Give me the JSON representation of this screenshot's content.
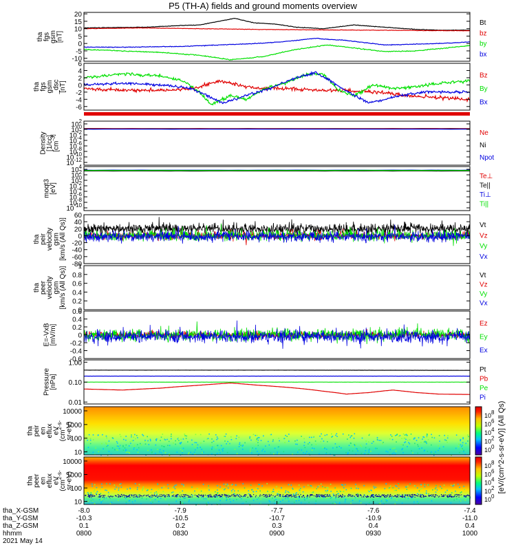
{
  "title": "P5 (TH-A) fields and ground moments overview",
  "colors": {
    "black": "#000000",
    "red": "#e00000",
    "green": "#00e000",
    "blue": "#0000e0"
  },
  "chart_data": [
    {
      "type": "line",
      "ylabel": [
        "tha",
        "fgs",
        "gsm",
        "[nT]"
      ],
      "ylim": [
        -12,
        21
      ],
      "yticks": [
        20,
        15,
        10,
        5,
        0,
        -5,
        -10
      ],
      "series": [
        {
          "name": "Bt",
          "color": "black",
          "points": [
            [
              0,
              10.5
            ],
            [
              0.08,
              10.8
            ],
            [
              0.16,
              11
            ],
            [
              0.24,
              12
            ],
            [
              0.3,
              12.5
            ],
            [
              0.35,
              15
            ],
            [
              0.39,
              17
            ],
            [
              0.44,
              14
            ],
            [
              0.5,
              13
            ],
            [
              0.55,
              11
            ],
            [
              0.62,
              10
            ],
            [
              0.7,
              12.5
            ],
            [
              0.78,
              11
            ],
            [
              0.86,
              9.5
            ],
            [
              0.92,
              9
            ],
            [
              1,
              9
            ]
          ],
          "noise": 0.15
        },
        {
          "name": "bz",
          "color": "red",
          "points": [
            [
              0,
              10
            ],
            [
              0.15,
              10.5
            ],
            [
              0.3,
              10
            ],
            [
              0.45,
              9.5
            ],
            [
              0.6,
              9.2
            ],
            [
              0.75,
              9
            ],
            [
              0.9,
              8.7
            ],
            [
              1,
              8.6
            ]
          ],
          "noise": 0.12
        },
        {
          "name": "by",
          "color": "green",
          "points": [
            [
              0,
              -4
            ],
            [
              0.1,
              -5
            ],
            [
              0.2,
              -6
            ],
            [
              0.3,
              -8
            ],
            [
              0.38,
              -11
            ],
            [
              0.46,
              -9
            ],
            [
              0.55,
              -4
            ],
            [
              0.63,
              -1
            ],
            [
              0.7,
              -3
            ],
            [
              0.78,
              -5.5
            ],
            [
              0.86,
              -5
            ],
            [
              0.94,
              -3
            ],
            [
              1,
              -1.5
            ]
          ],
          "noise": 0.25
        },
        {
          "name": "bx",
          "color": "blue",
          "points": [
            [
              0,
              -2.5
            ],
            [
              0.1,
              -2.5
            ],
            [
              0.25,
              -2
            ],
            [
              0.35,
              -1
            ],
            [
              0.45,
              0
            ],
            [
              0.53,
              1.5
            ],
            [
              0.6,
              3.5
            ],
            [
              0.68,
              2
            ],
            [
              0.78,
              -1
            ],
            [
              0.85,
              -0.5
            ],
            [
              0.92,
              0
            ],
            [
              1,
              1
            ]
          ],
          "noise": 0.2
        }
      ]
    },
    {
      "type": "line",
      "ylabel": [
        "tha",
        "fgs",
        "gsm",
        "_dsc",
        "[nT]"
      ],
      "ylim": [
        -7,
        6
      ],
      "yticks": [
        6,
        4,
        2,
        0,
        -2,
        -4,
        -6
      ],
      "series": [
        {
          "name": "Bz",
          "color": "red",
          "points": [
            [
              0,
              -1
            ],
            [
              0.1,
              -1.5
            ],
            [
              0.2,
              -1.5
            ],
            [
              0.28,
              -1
            ],
            [
              0.35,
              1
            ],
            [
              0.4,
              0
            ],
            [
              0.45,
              -1
            ],
            [
              0.52,
              -1
            ],
            [
              0.6,
              -1.5
            ],
            [
              0.68,
              -1.5
            ],
            [
              0.76,
              -2
            ],
            [
              0.84,
              -3
            ],
            [
              0.92,
              -3.5
            ],
            [
              1,
              -4
            ]
          ],
          "noise": 0.4
        },
        {
          "name": "By",
          "color": "green",
          "points": [
            [
              0,
              2
            ],
            [
              0.1,
              3
            ],
            [
              0.2,
              2.5
            ],
            [
              0.26,
              1
            ],
            [
              0.3,
              -2
            ],
            [
              0.33,
              -5.5
            ],
            [
              0.38,
              -3
            ],
            [
              0.42,
              -4
            ],
            [
              0.47,
              -1
            ],
            [
              0.52,
              0.5
            ],
            [
              0.58,
              3
            ],
            [
              0.62,
              3
            ],
            [
              0.66,
              -1.5
            ],
            [
              0.7,
              -3
            ],
            [
              0.75,
              0
            ],
            [
              0.8,
              -1
            ],
            [
              0.86,
              -0.5
            ],
            [
              0.92,
              0.5
            ],
            [
              1,
              1
            ]
          ],
          "noise": 0.35
        },
        {
          "name": "Bx",
          "color": "blue",
          "points": [
            [
              0,
              0
            ],
            [
              0.1,
              0.5
            ],
            [
              0.2,
              0
            ],
            [
              0.28,
              -1
            ],
            [
              0.32,
              -3
            ],
            [
              0.36,
              -5
            ],
            [
              0.42,
              -3
            ],
            [
              0.48,
              -1
            ],
            [
              0.55,
              2
            ],
            [
              0.6,
              3.5
            ],
            [
              0.64,
              1
            ],
            [
              0.7,
              -3
            ],
            [
              0.74,
              -5
            ],
            [
              0.78,
              -4
            ],
            [
              0.82,
              -3
            ],
            [
              0.88,
              -2
            ],
            [
              0.95,
              -2
            ],
            [
              1,
              -2
            ]
          ],
          "noise": 0.3
        }
      ]
    },
    {
      "type": "line",
      "log": true,
      "ylabel": [
        "Density",
        "[1/cc]",
        "[cm^-3]"
      ],
      "ylim": [
        1e-13,
        1000
      ],
      "yticks": [
        "10^2",
        "10^0",
        "10^-2",
        "10^-4",
        "10^-6",
        "10^-8",
        "10^-10",
        "10^-12"
      ],
      "yticks_values": [
        100,
        1,
        0.01,
        0.0001,
        1e-06,
        1e-08,
        1e-10,
        1e-12
      ],
      "series": [
        {
          "name": "Ne",
          "color": "red",
          "value": 2.0
        },
        {
          "name": "Ni",
          "color": "black",
          "value": 1.5
        },
        {
          "name": "Npot",
          "color": "blue",
          "value": 1.2
        }
      ]
    },
    {
      "type": "line",
      "log": true,
      "ylabel": [
        "moqt3",
        "[eV]"
      ],
      "ylim": [
        1e-11,
        100000
      ],
      "yticks": [
        "10^4",
        "10^2",
        "10^0",
        "10^-2",
        "10^-4",
        "10^-6",
        "10^-8",
        "10^-10"
      ],
      "yticks_values": [
        10000,
        100,
        1,
        0.01,
        0.0001,
        1e-06,
        1e-08,
        1e-10
      ],
      "series": [
        {
          "name": "Te⊥",
          "color": "red",
          "value": 3000
        },
        {
          "name": "Te||",
          "color": "black",
          "value": 2500
        },
        {
          "name": "Ti⊥",
          "color": "blue",
          "value": 5000
        },
        {
          "name": "Ti||",
          "color": "green",
          "value": 4000
        }
      ]
    },
    {
      "type": "line",
      "ylabel": [
        "tha",
        "peir",
        "velocity",
        "gsm",
        "[km/s (All Qs)]"
      ],
      "ylim": [
        -80,
        60
      ],
      "yticks": [
        60,
        40,
        20,
        0,
        -20,
        -40,
        -60,
        -80
      ],
      "series": [
        {
          "name": "Vt",
          "color": "black",
          "mean": 20,
          "noise": 12
        },
        {
          "name": "Vz",
          "color": "red",
          "mean": 0,
          "noise": 8
        },
        {
          "name": "Vy",
          "color": "green",
          "mean": 0,
          "noise": 12
        },
        {
          "name": "Vx",
          "color": "blue",
          "mean": -2,
          "noise": 12
        }
      ]
    },
    {
      "type": "line",
      "ylabel": [
        "tha",
        "peer",
        "velocity",
        "gsm",
        "[km/s (All Qs)]"
      ],
      "ylim": [
        0,
        1.0
      ],
      "yticks": [
        1.0,
        0.8,
        0.6,
        0.4,
        0.2,
        0.0
      ],
      "series": [
        {
          "name": "Vt",
          "color": "black"
        },
        {
          "name": "Vz",
          "color": "red"
        },
        {
          "name": "Vy",
          "color": "green"
        },
        {
          "name": "Vx",
          "color": "blue"
        }
      ]
    },
    {
      "type": "line",
      "ylabel": [
        "E=-VxB",
        "[mV/m]"
      ],
      "ylim": [
        -0.6,
        0.6
      ],
      "yticks": [
        0.6,
        0.4,
        0.2,
        0.0,
        -0.2,
        -0.4,
        -0.6
      ],
      "series": [
        {
          "name": "Ez",
          "color": "red",
          "mean": 0,
          "noise": 0.06
        },
        {
          "name": "Ey",
          "color": "green",
          "mean": 0,
          "noise": 0.12
        },
        {
          "name": "Ex",
          "color": "blue",
          "mean": -0.05,
          "noise": 0.12
        }
      ]
    },
    {
      "type": "line",
      "log": true,
      "ylabel": [
        "Pressure",
        "[nPa]"
      ],
      "ylim": [
        0.008,
        1.3
      ],
      "yticks": [
        "1.00",
        "0.10",
        "0.01"
      ],
      "yticks_values": [
        1,
        0.1,
        0.01
      ],
      "series": [
        {
          "name": "Pt",
          "color": "black",
          "points": [
            [
              0,
              0.4
            ],
            [
              0.5,
              0.4
            ],
            [
              1,
              0.39
            ]
          ],
          "noise": 0.005
        },
        {
          "name": "Pb",
          "color": "red",
          "points": [
            [
              0,
              0.045
            ],
            [
              0.1,
              0.04
            ],
            [
              0.2,
              0.05
            ],
            [
              0.3,
              0.07
            ],
            [
              0.38,
              0.09
            ],
            [
              0.45,
              0.07
            ],
            [
              0.55,
              0.05
            ],
            [
              0.62,
              0.035
            ],
            [
              0.68,
              0.025
            ],
            [
              0.74,
              0.03
            ],
            [
              0.8,
              0.04
            ],
            [
              0.86,
              0.03
            ],
            [
              0.92,
              0.025
            ],
            [
              1,
              0.024
            ]
          ],
          "noise": 0.002
        },
        {
          "name": "Pe",
          "color": "green",
          "points": [
            [
              0,
              0.1
            ],
            [
              1,
              0.1
            ]
          ],
          "noise": 0.002
        },
        {
          "name": "Pi",
          "color": "blue",
          "points": [
            [
              0,
              0.2
            ],
            [
              0.5,
              0.2
            ],
            [
              1,
              0.2
            ]
          ],
          "noise": 0.003
        }
      ]
    },
    {
      "type": "heatmap",
      "ylabel": [
        "tha",
        "peir",
        "en",
        "eflux",
        "eV",
        "(cm^2-s-",
        "sr-eV)"
      ],
      "yticks": [
        "10000",
        "1000",
        "100",
        "10"
      ],
      "colorbar_ticks": [
        "10^8",
        "10^6",
        "10^4",
        "10^2",
        "10^0"
      ]
    },
    {
      "type": "heatmap",
      "ylabel": [
        "tha",
        "peer",
        "en",
        "eflux",
        "eV",
        "(cm^2-s-",
        "sr-eV)"
      ],
      "yticks": [
        "10000",
        "1000",
        "100",
        "10"
      ],
      "colorbar_ticks": [
        "10^8",
        "10^6",
        "10^4",
        "10^2",
        "10^0"
      ]
    }
  ],
  "colorbar_label": "[eV/(cm^2-s-sr-eV)] (All Qs)",
  "x_axis": {
    "row_labels": [
      "tha_X-GSM",
      "tha_Y-GSM",
      "tha_Z-GSM",
      "hhmm",
      "2021 May 14"
    ],
    "ticks": [
      [
        "-8.0",
        "-7.9",
        "-7.7",
        "-7.6",
        "-7.4"
      ],
      [
        "-10.3",
        "-10.5",
        "-10.7",
        "-10.9",
        "-11.0"
      ],
      [
        "0.1",
        "0.2",
        "0.3",
        "0.4",
        "0.4"
      ],
      [
        "0800",
        "0830",
        "0900",
        "0930",
        "1000"
      ]
    ]
  }
}
